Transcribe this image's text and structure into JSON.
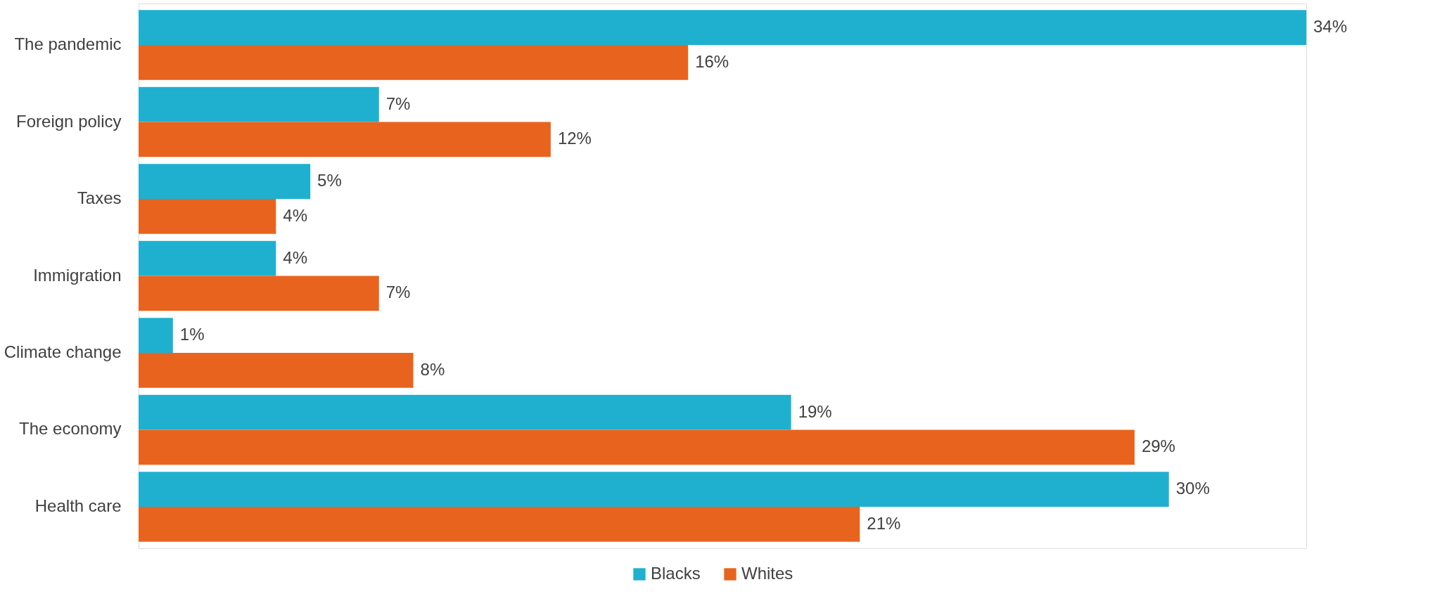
{
  "chart_data": {
    "type": "bar",
    "orientation": "horizontal",
    "legend": "bottom",
    "categories": [
      "The pandemic",
      "Foreign policy",
      "Taxes",
      "Immigration",
      "Climate change",
      "The economy",
      "Health care"
    ],
    "series": [
      {
        "name": "Blacks",
        "color": "#1fb0cf",
        "values": [
          34,
          7,
          5,
          4,
          1,
          19,
          30
        ],
        "value_labels": [
          "34%",
          "7%",
          "5%",
          "4%",
          "1%",
          "19%",
          "30%"
        ]
      },
      {
        "name": "Whites",
        "color": "#e8641e",
        "values": [
          16,
          12,
          4,
          7,
          8,
          29,
          21
        ],
        "value_labels": [
          "16%",
          "12%",
          "4%",
          "7%",
          "8%",
          "29%",
          "21%"
        ]
      }
    ]
  }
}
